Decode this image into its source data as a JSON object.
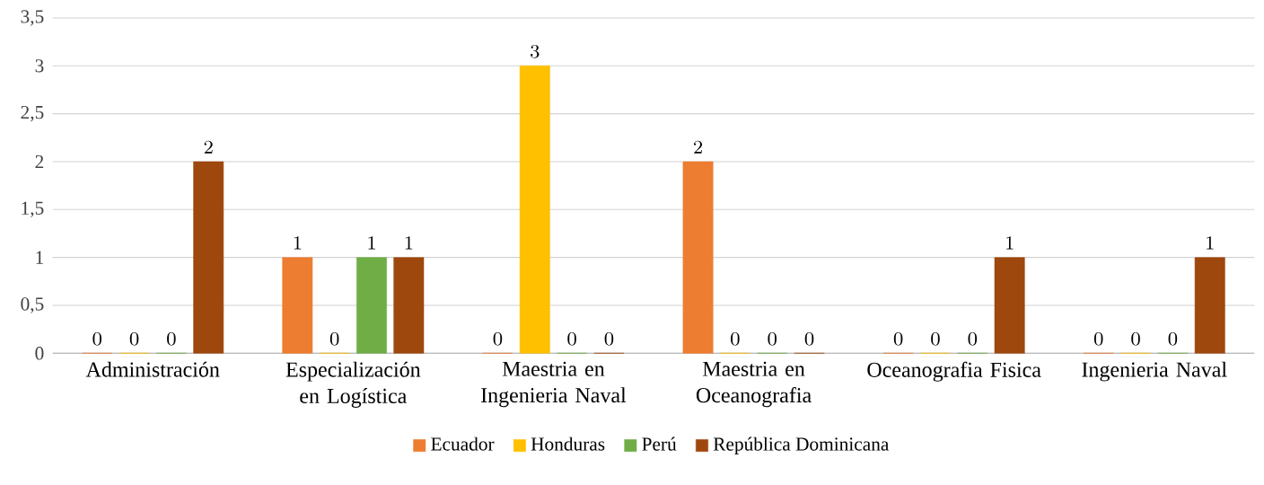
{
  "chart_data": {
    "type": "bar",
    "categories": [
      "Administración",
      "Especialización en Logística",
      "Maestria en Ingenieria Naval",
      "Maestria en Oceanografia",
      "Oceanografia Fisica",
      "Ingenieria Naval"
    ],
    "series": [
      {
        "name": "Ecuador",
        "color": "#ed7d31",
        "values": [
          0,
          1,
          0,
          2,
          0,
          0
        ]
      },
      {
        "name": "Honduras",
        "color": "#ffc000",
        "values": [
          0,
          0,
          3,
          0,
          0,
          0
        ]
      },
      {
        "name": "Perú",
        "color": "#70ad47",
        "values": [
          0,
          1,
          0,
          0,
          0,
          0
        ]
      },
      {
        "name": "República Dominicana",
        "color": "#9e480e",
        "values": [
          2,
          1,
          0,
          0,
          1,
          1
        ]
      }
    ],
    "ylim": [
      0,
      3.5
    ],
    "yticks": [
      0,
      {
        "value": 0.5,
        "label": "0,5"
      },
      1,
      {
        "value": 1.5,
        "label": "1,5"
      },
      2,
      {
        "value": 2.5,
        "label": "2,5"
      },
      3,
      {
        "value": 3.5,
        "label": "3,5"
      }
    ],
    "grid": "y",
    "legend": "bottom",
    "data_labels": true
  }
}
